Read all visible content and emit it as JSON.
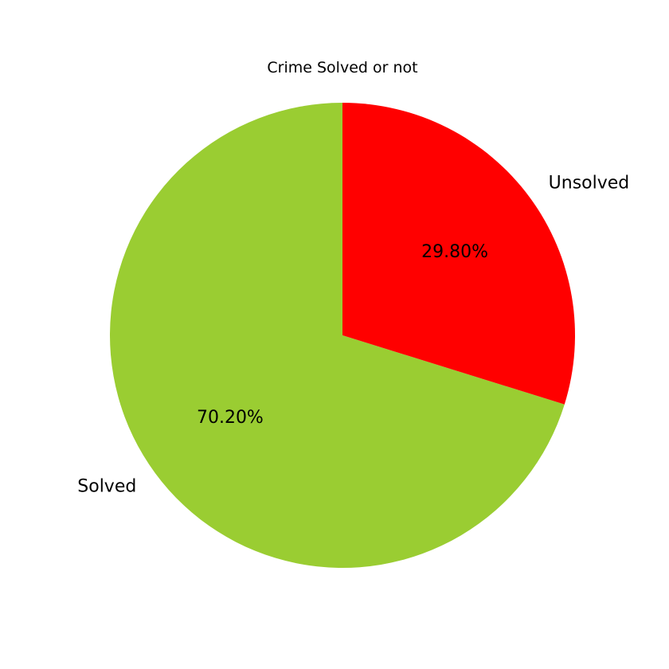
{
  "chart_data": {
    "type": "pie",
    "title": "Crime Solved or not",
    "start_angle_deg": 90,
    "direction": "counterclockwise",
    "slices": [
      {
        "label": "Solved",
        "value": 70.2,
        "pct_label": "70.20%",
        "color": "#9ACD32"
      },
      {
        "label": "Unsolved",
        "value": 29.8,
        "pct_label": "29.80%",
        "color": "#FF0000"
      }
    ]
  }
}
